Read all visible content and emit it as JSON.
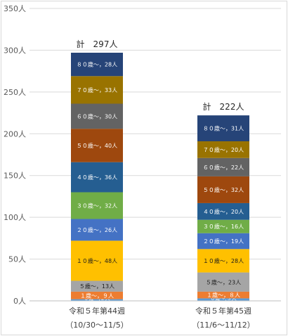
{
  "chart_data": {
    "type": "bar",
    "stacked": true,
    "y_unit_suffix": "人",
    "ylim": [
      0,
      350
    ],
    "yticks": [
      0,
      50,
      100,
      150,
      200,
      250,
      300,
      350
    ],
    "grid": true,
    "categories": [
      {
        "line1": "令和５年第44週",
        "line2": "（10/30～11/5）",
        "total_label": "計　297人",
        "total": 297
      },
      {
        "line1": "令和５年第45週",
        "line2": "（11/6～11/12）",
        "total_label": "計　222人",
        "total": 222
      }
    ],
    "series": [
      {
        "name": "０歳",
        "color": "#5b9bd5",
        "values": [
          2,
          3
        ],
        "labels": [
          "０歳～,２人",
          "０歳～,３人"
        ]
      },
      {
        "name": "１歳",
        "color": "#ed7d31",
        "values": [
          9,
          8
        ],
        "labels": [
          "１歳～，９人",
          "１歳～，８人"
        ]
      },
      {
        "name": "５歳",
        "color": "#a5a5a5",
        "values": [
          13,
          23
        ],
        "labels": [
          "５歳～，13人",
          "５歳～，23人"
        ]
      },
      {
        "name": "１０歳",
        "color": "#ffc000",
        "values": [
          48,
          28
        ],
        "labels": [
          "１０歳～，48人",
          "１０歳～，28人"
        ]
      },
      {
        "name": "２０歳",
        "color": "#4472c4",
        "values": [
          26,
          19
        ],
        "labels": [
          "２０歳～，26人",
          "２０歳～，19人"
        ]
      },
      {
        "name": "３０歳",
        "color": "#70ad47",
        "values": [
          32,
          16
        ],
        "labels": [
          "３０歳～，32人",
          "３０歳～，16人"
        ]
      },
      {
        "name": "４０歳",
        "color": "#255e91",
        "values": [
          36,
          20
        ],
        "labels": [
          "４０歳～，36人",
          "４０歳～，20人"
        ]
      },
      {
        "name": "５０歳",
        "color": "#9e480e",
        "values": [
          40,
          32
        ],
        "labels": [
          "５０歳～，40人",
          "５０歳～，32人"
        ]
      },
      {
        "name": "６０歳",
        "color": "#636363",
        "values": [
          30,
          22
        ],
        "labels": [
          "６０歳～，30人",
          "６０歳～，22人"
        ]
      },
      {
        "name": "７０歳",
        "color": "#997300",
        "values": [
          33,
          20
        ],
        "labels": [
          "７０歳～，33人",
          "７０歳～，20人"
        ]
      },
      {
        "name": "８０歳",
        "color": "#264478",
        "values": [
          28,
          31
        ],
        "labels": [
          "８０歳～，28人",
          "８０歳～，31人"
        ]
      }
    ]
  }
}
